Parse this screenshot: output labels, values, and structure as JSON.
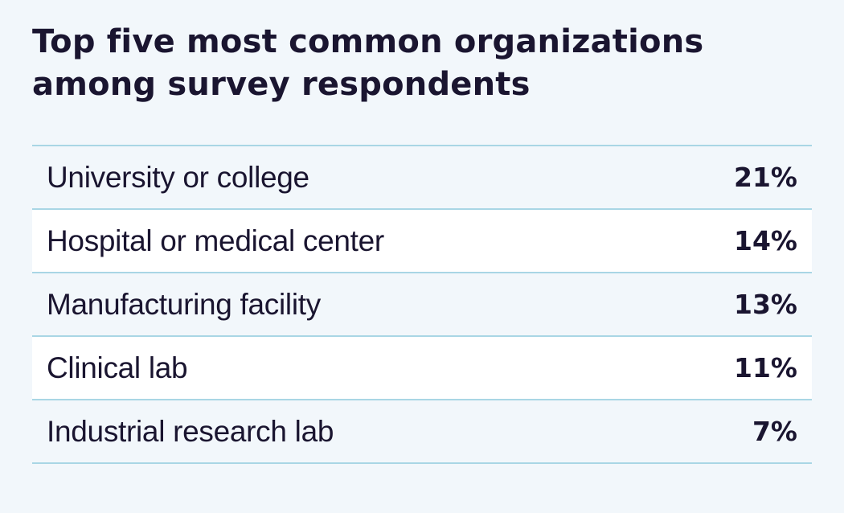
{
  "chart_data": {
    "type": "table",
    "title": "Top five most common organizations among survey respondents",
    "categories": [
      "University or college",
      "Hospital or medical center",
      "Manufacturing facility",
      "Clinical lab",
      "Industrial research lab"
    ],
    "values": [
      21,
      14,
      13,
      11,
      7
    ],
    "value_labels": [
      "21%",
      "14%",
      "13%",
      "11%",
      "7%"
    ],
    "unit": "%"
  },
  "colors": {
    "background": "#f2f7fb",
    "row_alt": "#ffffff",
    "divider": "#a9d6e5",
    "text": "#1a1530"
  }
}
